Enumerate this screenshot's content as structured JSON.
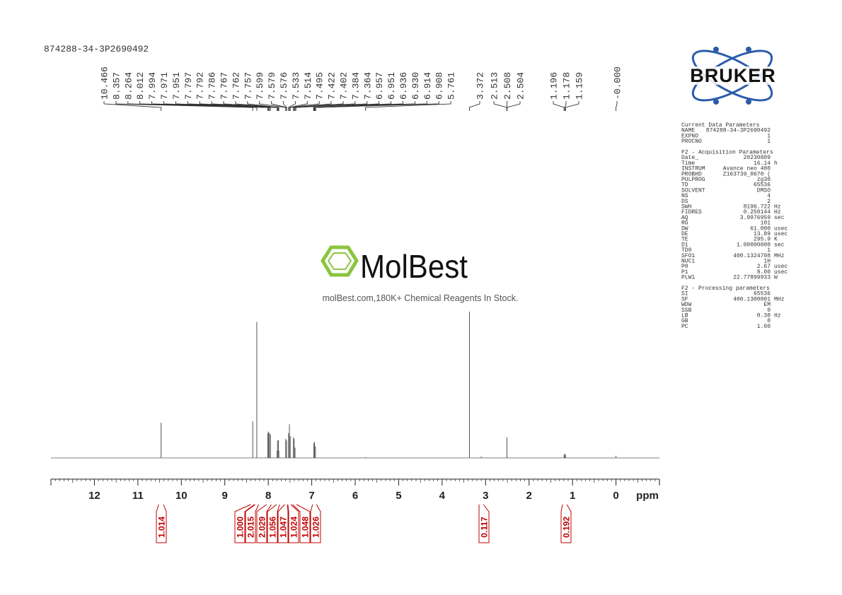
{
  "chart_data": {
    "type": "nmr",
    "sample_name": "874288-34-3P2690492",
    "xlabel": "ppm",
    "xlim": [
      13,
      -1
    ],
    "xticks": [
      12,
      11,
      10,
      9,
      8,
      7,
      6,
      5,
      4,
      3,
      2,
      1,
      0
    ],
    "ylim": [
      0,
      100
    ],
    "color": "#555555",
    "integral_color": "#c00000",
    "spectrum": {
      "ppm": [
        10.466,
        8.357,
        8.264,
        8.012,
        7.994,
        7.971,
        7.951,
        7.797,
        7.786,
        7.767,
        7.757,
        7.599,
        7.579,
        7.533,
        7.514,
        7.495,
        7.422,
        7.402,
        7.384,
        6.951,
        6.936,
        6.914,
        5.761,
        3.372,
        3.1,
        2.508,
        1.196,
        1.178,
        1.159,
        0
      ],
      "intensity": [
        24,
        25,
        93,
        17,
        18,
        17,
        16,
        5,
        12,
        12,
        5,
        13,
        12,
        17,
        23,
        15,
        14,
        13,
        7,
        10,
        11,
        8,
        0.5,
        100,
        1,
        14,
        2,
        3,
        2,
        1.5
      ]
    },
    "peak_labels": [
      {
        "value": 10.466,
        "label": "10.466"
      },
      {
        "value": 8.357,
        "label": "8.357"
      },
      {
        "value": 8.264,
        "label": "8.264"
      },
      {
        "value": 8.012,
        "label": "8.012"
      },
      {
        "value": 7.994,
        "label": "7.994"
      },
      {
        "value": 7.971,
        "label": "7.971"
      },
      {
        "value": 7.951,
        "label": "7.951"
      },
      {
        "value": 7.797,
        "label": "7.797"
      },
      {
        "value": 7.792,
        "label": "7.792"
      },
      {
        "value": 7.786,
        "label": "7.786"
      },
      {
        "value": 7.767,
        "label": "7.767"
      },
      {
        "value": 7.762,
        "label": "7.762"
      },
      {
        "value": 7.757,
        "label": "7.757"
      },
      {
        "value": 7.599,
        "label": "7.599"
      },
      {
        "value": 7.579,
        "label": "7.579"
      },
      {
        "value": 7.576,
        "label": "7.576"
      },
      {
        "value": 7.533,
        "label": "7.533"
      },
      {
        "value": 7.514,
        "label": "7.514"
      },
      {
        "value": 7.495,
        "label": "7.495"
      },
      {
        "value": 7.422,
        "label": "7.422"
      },
      {
        "value": 7.402,
        "label": "7.402"
      },
      {
        "value": 7.384,
        "label": "7.384"
      },
      {
        "value": 7.364,
        "label": "7.364"
      },
      {
        "value": 6.957,
        "label": "6.957"
      },
      {
        "value": 6.951,
        "label": "6.951"
      },
      {
        "value": 6.936,
        "label": "6.936"
      },
      {
        "value": 6.93,
        "label": "6.930"
      },
      {
        "value": 6.914,
        "label": "6.914"
      },
      {
        "value": 6.908,
        "label": "6.908"
      },
      {
        "value": 5.761,
        "label": "5.761"
      },
      {
        "value": 3.372,
        "label": "3.372"
      },
      {
        "value": 2.513,
        "label": "2.513"
      },
      {
        "value": 2.508,
        "label": "2.508"
      },
      {
        "value": 2.504,
        "label": "2.504"
      },
      {
        "value": 1.196,
        "label": "1.196"
      },
      {
        "value": 1.178,
        "label": "1.178"
      },
      {
        "value": 1.159,
        "label": "1.159"
      },
      {
        "value": 0,
        "label": "-0.000"
      }
    ],
    "integrals": [
      {
        "from": 10.52,
        "to": 10.41,
        "value": 1.014,
        "label": "1.014"
      },
      {
        "from": 8.4,
        "to": 8.32,
        "value": 1,
        "label": "1.000"
      },
      {
        "from": 8.3,
        "to": 8.22,
        "value": 2.015,
        "label": "2.015"
      },
      {
        "from": 8.04,
        "to": 7.93,
        "value": 2.029,
        "label": "2.029"
      },
      {
        "from": 7.81,
        "to": 7.74,
        "value": 1.056,
        "label": "1.056"
      },
      {
        "from": 7.62,
        "to": 7.56,
        "value": 1.047,
        "label": "1.047"
      },
      {
        "from": 7.55,
        "to": 7.48,
        "value": 1.024,
        "label": "1.024"
      },
      {
        "from": 7.44,
        "to": 7.35,
        "value": 1.048,
        "label": "1.048"
      },
      {
        "from": 6.98,
        "to": 6.89,
        "value": 1.026,
        "label": "1.026"
      },
      {
        "from": 3.15,
        "to": 3.05,
        "value": 0.117,
        "label": "0.117"
      },
      {
        "from": 1.23,
        "to": 1.13,
        "value": 0.192,
        "label": "0.192"
      }
    ]
  },
  "logo": "BRUKER",
  "watermark": {
    "brand": "MolBest",
    "tagline": "molBest.com,180K+ Chemical Reagents In Stock."
  },
  "parameters": [
    {
      "title": "Current Data Parameters",
      "rows": [
        [
          "NAME",
          "874288-34-3P2690492",
          ""
        ],
        [
          "EXPNO",
          "1",
          ""
        ],
        [
          "PROCNO",
          "1",
          ""
        ]
      ]
    },
    {
      "title": "F2 - Acquisition Parameters",
      "rows": [
        [
          "Date_",
          "20230809",
          ""
        ],
        [
          "Time",
          "16.14",
          "h"
        ],
        [
          "INSTRUM",
          "Avance neo 400",
          ""
        ],
        [
          "PROBHD",
          "Z163739_0670 (",
          ""
        ],
        [
          "PULPROG",
          "zg30",
          ""
        ],
        [
          "TD",
          "65536",
          ""
        ],
        [
          "SOLVENT",
          "DMSO",
          ""
        ],
        [
          "NS",
          "4",
          ""
        ],
        [
          "DS",
          "2",
          ""
        ],
        [
          "SWH",
          "8196.722",
          "Hz"
        ],
        [
          "FIDRES",
          "0.250144",
          "Hz"
        ],
        [
          "AQ",
          "3.9976959",
          "sec"
        ],
        [
          "RG",
          "101",
          ""
        ],
        [
          "DW",
          "61.000",
          "usec"
        ],
        [
          "DE",
          "13.89",
          "usec"
        ],
        [
          "TE",
          "295.9",
          "K"
        ],
        [
          "D1",
          "1.00000000",
          "sec"
        ],
        [
          "TD0",
          "1",
          ""
        ],
        [
          "SFO1",
          "400.1324708",
          "MHz"
        ],
        [
          "NUC1",
          "1H",
          ""
        ],
        [
          "P0",
          "2.67",
          "usec"
        ],
        [
          "P1",
          "8.00",
          "usec"
        ],
        [
          "PLW1",
          "22.77899933",
          "W"
        ]
      ]
    },
    {
      "title": "F2 - Processing parameters",
      "rows": [
        [
          "SI",
          "65536",
          ""
        ],
        [
          "SF",
          "400.1300001",
          "MHz"
        ],
        [
          "WDW",
          "EM",
          ""
        ],
        [
          "SSB",
          "0",
          ""
        ],
        [
          "LB",
          "0.30",
          "Hz"
        ],
        [
          "GB",
          "0",
          ""
        ],
        [
          "PC",
          "1.00",
          ""
        ]
      ]
    }
  ]
}
